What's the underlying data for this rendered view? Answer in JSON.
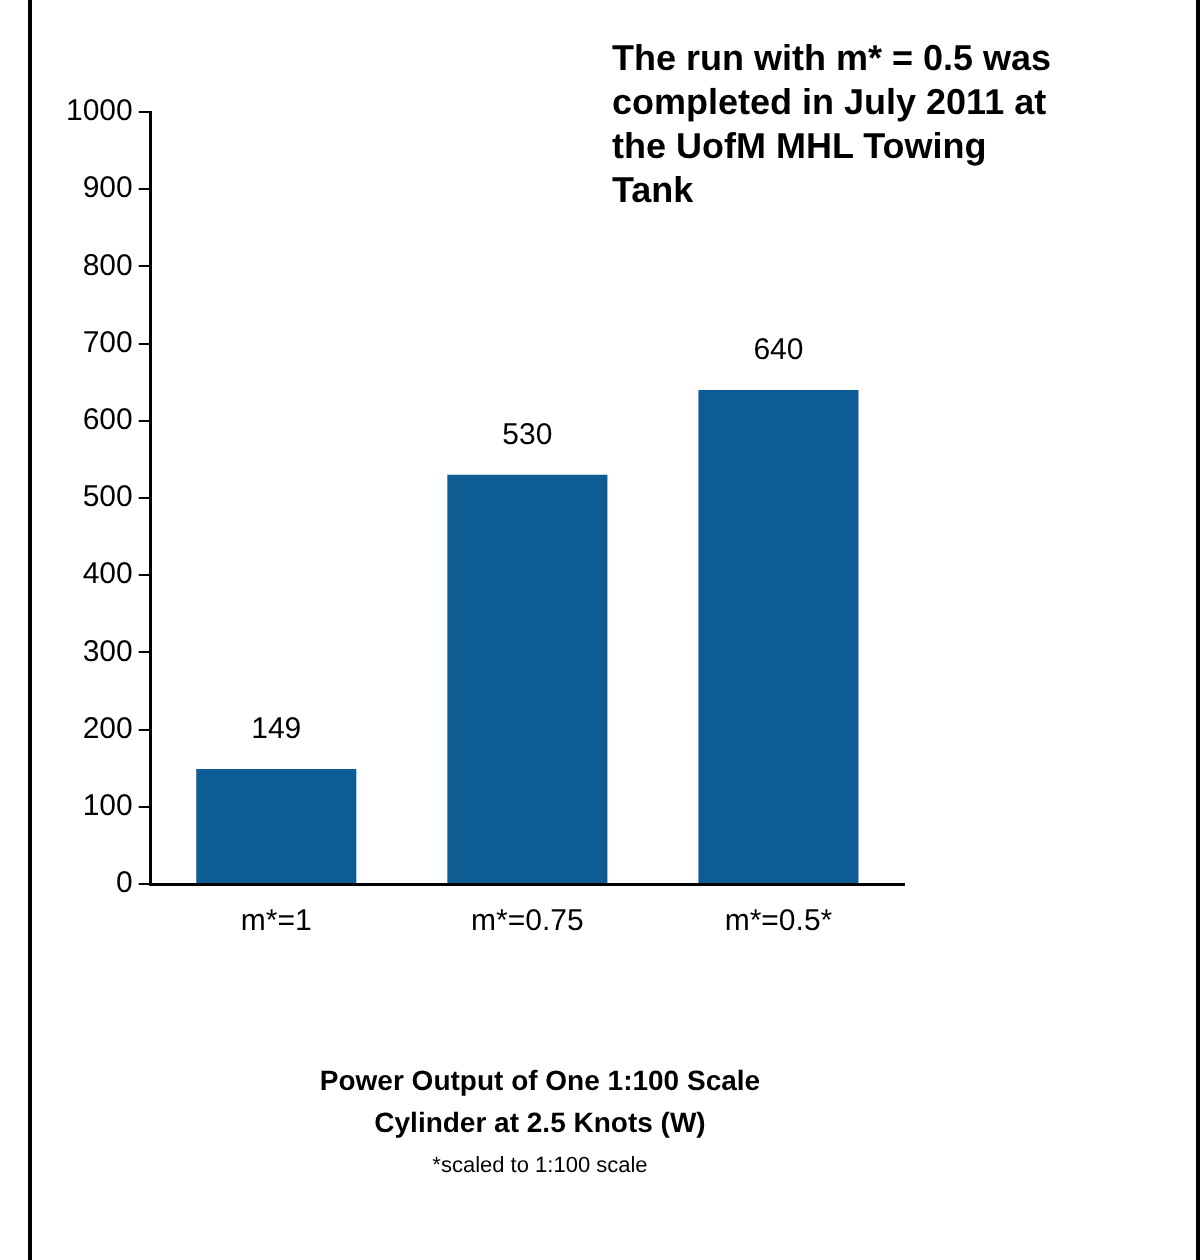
{
  "chart_data": {
    "type": "bar",
    "xlabel": "Power Output of One 1:100 Scale Cylinder at 2.5 Knots (W)",
    "annotations": [
      "The run with m* = 0.5 was completed in July 2011 at the UofM MHL Towing Tank",
      "*scaled to 1:100 scale"
    ],
    "categories": [
      "m*=1",
      "m*=0.75",
      "m*=0.5*"
    ],
    "values": [
      149,
      530,
      640
    ],
    "color": "#0e5c94",
    "ylim": [
      0,
      1000
    ],
    "yticks": [
      0,
      100,
      200,
      300,
      400,
      500,
      600,
      700,
      800,
      900,
      1000
    ],
    "grid": false,
    "legend": false,
    "data_labels": true
  }
}
